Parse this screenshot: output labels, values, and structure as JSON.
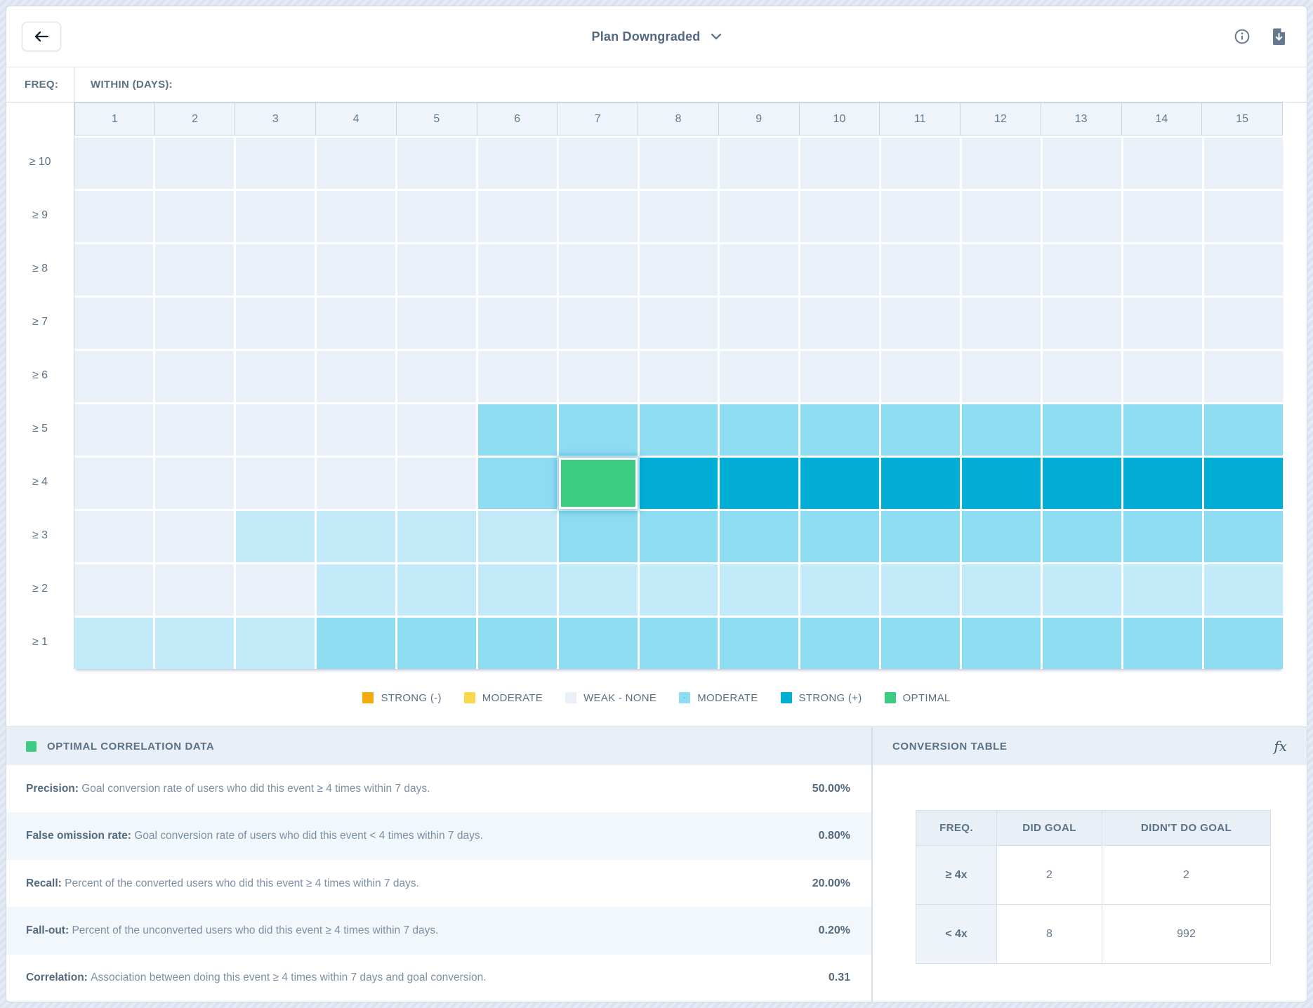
{
  "header": {
    "title": "Plan Downgraded"
  },
  "axis": {
    "freq_label": "FREQ:",
    "within_label": "WITHIN (DAYS):"
  },
  "heatmap": {
    "columns": [
      "1",
      "2",
      "3",
      "4",
      "5",
      "6",
      "7",
      "8",
      "9",
      "10",
      "11",
      "12",
      "13",
      "14",
      "15"
    ],
    "rows": [
      "≥ 10",
      "≥ 9",
      "≥ 8",
      "≥ 7",
      "≥ 6",
      "≥ 5",
      "≥ 4",
      "≥ 3",
      "≥ 2",
      "≥ 1"
    ],
    "cells": [
      "WWWWWWWWWWWWWWW",
      "WWWWWWWWWWWWWWW",
      "WWWWWWWWWWWWWWW",
      "WWWWWWWWWWWWWWW",
      "WWWWWWWWWWWWWWW",
      "WWWWWMMMMMMMMMM",
      "WWWWWMOSSSSSSSS",
      "WWLLLLMMMMMMMMM",
      "WWWLLLLLLLLLLLL",
      "LLLMMMMMMMMMMMM"
    ],
    "colors": {
      "weak": "#e9f0f8",
      "light": "#c2eaf9",
      "moderate": "#8edcf2",
      "strong": "#02aed6",
      "optimal": "#3ecb82",
      "strong_neg": "#f2ab0d",
      "moderate_neg": "#fad84c"
    },
    "optimal_cell": {
      "row": "≥ 4",
      "column": "7"
    }
  },
  "legend": [
    {
      "label": "STRONG (-)",
      "color_key": "strong_neg",
      "textured": false
    },
    {
      "label": "MODERATE",
      "color_key": "moderate_neg",
      "textured": false
    },
    {
      "label": "WEAK - NONE",
      "color_key": "weak",
      "textured": false
    },
    {
      "label": "MODERATE",
      "color_key": "moderate",
      "textured": true
    },
    {
      "label": "STRONG (+)",
      "color_key": "strong",
      "textured": false
    },
    {
      "label": "OPTIMAL",
      "color_key": "optimal",
      "textured": false
    }
  ],
  "optimal_panel": {
    "title": "OPTIMAL CORRELATION DATA",
    "rows": [
      {
        "label": "Precision:",
        "description": "Goal conversion rate of users who did this event ≥ 4 times within 7 days.",
        "value": "50.00%"
      },
      {
        "label": "False omission rate:",
        "description": "Goal conversion rate of users who did this event < 4 times within 7 days.",
        "value": "0.80%"
      },
      {
        "label": "Recall:",
        "description": "Percent of the converted users who did this event ≥ 4 times within 7 days.",
        "value": "20.00%"
      },
      {
        "label": "Fall-out:",
        "description": "Percent of the unconverted users who did this event ≥ 4 times within 7 days.",
        "value": "0.20%"
      },
      {
        "label": "Correlation:",
        "description": "Association between doing this event ≥ 4 times within 7 days and goal conversion.",
        "value": "0.31"
      }
    ]
  },
  "conversion_panel": {
    "title": "CONVERSION TABLE",
    "fx_label": "fx",
    "table": {
      "headers": [
        "FREQ.",
        "DID GOAL",
        "DIDN'T DO GOAL"
      ],
      "rows": [
        {
          "freq": "≥ 4x",
          "did_goal": "2",
          "didnt_do_goal": "2"
        },
        {
          "freq": "< 4x",
          "did_goal": "8",
          "didnt_do_goal": "992"
        }
      ]
    }
  }
}
